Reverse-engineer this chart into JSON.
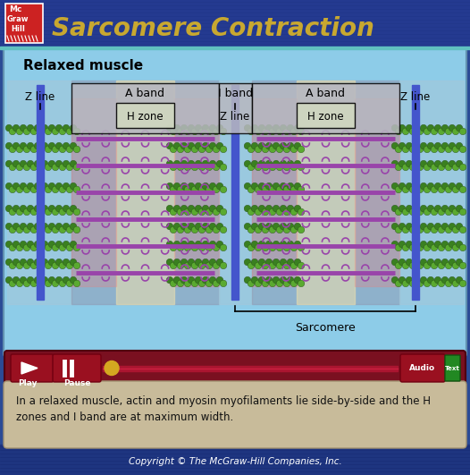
{
  "title": "Sarcomere Contraction",
  "bg_outer": "#2B4B96",
  "bg_title_gradient_top": "#3355AA",
  "bg_title_gradient_bot": "#1A3080",
  "title_color": "#C8A830",
  "bg_main": "#8DCCE8",
  "subtitle": "Relaxed muscle",
  "caption_line1": "In a relaxed muscle, actin and myosin myofilaments lie side-by-side and the H",
  "caption_line2": "zones and I band are at maximum width.",
  "copyright": "Copyright © The McGraw-Hill Companies, Inc.",
  "ctrl_bg": "#7A1020",
  "caption_bg": "#C8BB9A",
  "play_label": "Play",
  "pause_label": "Pause",
  "audio_label": "Audio",
  "text_label": "Text",
  "sarcomere_label": "Sarcomere",
  "z_line_color": "#5566CC",
  "myosin_color": "#9944AA",
  "actin_color": "#3A8A2A",
  "actin_color2": "#5AAA40",
  "band_label_A": "A band",
  "band_label_I": "I band",
  "zone_label_H": "H zone",
  "zone_label_Z": "Z line"
}
